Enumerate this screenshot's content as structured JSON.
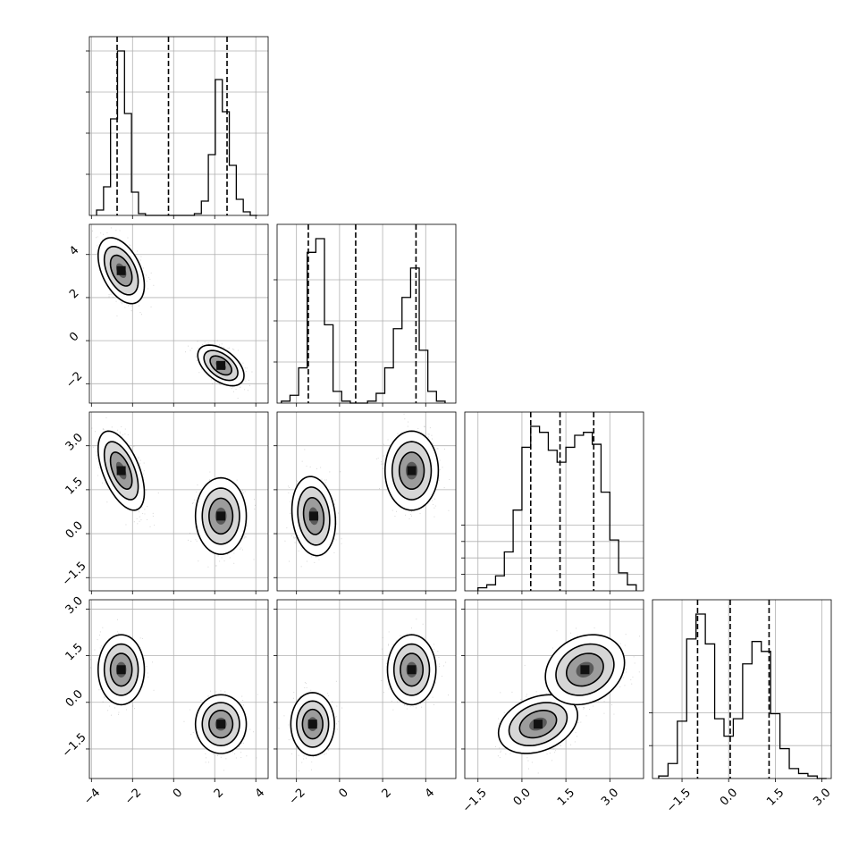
{
  "chart_data": {
    "type": "corner",
    "grid": true,
    "panels": [
      {
        "id": "hist-0",
        "type": "histogram",
        "variable_index": 0,
        "xlim": [
          -4.1,
          4.6
        ],
        "x_ticks": [
          -4,
          -2,
          0,
          2,
          4
        ],
        "x_tick_labels": [
          "−4",
          "−2",
          "0",
          "2",
          "4"
        ],
        "show_x_tick_labels": false,
        "y_ticks": [
          0.25,
          0.5,
          0.75,
          1.0
        ],
        "bins": [
          -3.75,
          -3.41,
          -3.07,
          -2.73,
          -2.39,
          -2.05,
          -1.71,
          -1.37,
          -1.03,
          -0.69,
          -0.35,
          -0.01,
          0.33,
          0.67,
          1.01,
          1.35,
          1.69,
          2.03,
          2.37,
          2.71,
          3.05,
          3.39,
          3.73,
          4.07
        ],
        "values": [
          0.03,
          0.16,
          0.54,
          0.92,
          0.57,
          0.13,
          0.01,
          0,
          0,
          0,
          0,
          0,
          0,
          0,
          0.01,
          0.08,
          0.34,
          0.76,
          0.58,
          0.28,
          0.09,
          0.02,
          0
        ],
        "quantile_lines": [
          -2.75,
          -0.25,
          2.6
        ]
      },
      {
        "id": "hist-1",
        "type": "histogram",
        "variable_index": 1,
        "xlim": [
          -2.9,
          5.4
        ],
        "x_ticks": [
          -2,
          0,
          2,
          4
        ],
        "x_tick_labels": [
          "−2",
          "0",
          "2",
          "4"
        ],
        "show_x_tick_labels": false,
        "y_ticks": [
          0.25,
          0.5,
          0.75
        ],
        "bins": [
          -2.7,
          -2.3,
          -1.9,
          -1.5,
          -1.1,
          -0.7,
          -0.3,
          0.1,
          0.5,
          0.9,
          1.3,
          1.7,
          2.1,
          2.5,
          2.9,
          3.3,
          3.7,
          4.1,
          4.5,
          4.9
        ],
        "values": [
          0.01,
          0.04,
          0.18,
          0.77,
          0.84,
          0.4,
          0.06,
          0.01,
          0,
          0,
          0.01,
          0.05,
          0.18,
          0.38,
          0.54,
          0.69,
          0.27,
          0.06,
          0.01
        ],
        "quantile_lines": [
          -1.45,
          0.75,
          3.55
        ]
      },
      {
        "id": "hist-2",
        "type": "histogram",
        "variable_index": 2,
        "xlim": [
          -1.95,
          4.15
        ],
        "x_ticks": [
          -1.5,
          0.0,
          1.5,
          3.0
        ],
        "x_tick_labels": [
          "−1.5",
          "0.0",
          "1.5",
          "3.0"
        ],
        "show_x_tick_labels": false,
        "y_ticks": [
          0.1,
          0.2,
          0.3,
          0.4
        ],
        "bins": [
          -1.5,
          -1.2,
          -0.9,
          -0.6,
          -0.3,
          0.0,
          0.3,
          0.6,
          0.9,
          1.2,
          1.5,
          1.8,
          2.1,
          2.4,
          2.7,
          3.0,
          3.3,
          3.6,
          3.9
        ],
        "values": [
          0.01,
          0.02,
          0.05,
          0.13,
          0.27,
          0.48,
          0.55,
          0.53,
          0.47,
          0.43,
          0.48,
          0.52,
          0.53,
          0.49,
          0.33,
          0.17,
          0.06,
          0.02
        ],
        "quantile_lines": [
          0.3,
          1.3,
          2.45
        ]
      },
      {
        "id": "hist-3",
        "type": "histogram",
        "variable_index": 3,
        "xlim": [
          -2.45,
          3.3
        ],
        "x_ticks": [
          -1.5,
          0.0,
          1.5,
          3.0
        ],
        "x_tick_labels": [
          "−1.5",
          "0.0",
          "1.5",
          "3.0"
        ],
        "show_x_tick_labels": true,
        "y_ticks": [
          0.2,
          0.4
        ],
        "bins": [
          -2.25,
          -1.95,
          -1.65,
          -1.35,
          -1.05,
          -0.75,
          -0.45,
          -0.15,
          0.15,
          0.45,
          0.75,
          1.05,
          1.35,
          1.65,
          1.95,
          2.25,
          2.55,
          2.85,
          3.15
        ],
        "values": [
          0.01,
          0.06,
          0.23,
          0.56,
          0.66,
          0.54,
          0.24,
          0.17,
          0.24,
          0.46,
          0.55,
          0.51,
          0.26,
          0.12,
          0.04,
          0.02,
          0.01,
          0
        ],
        "quantile_lines": [
          -1.0,
          0.05,
          1.3
        ]
      },
      {
        "id": "scatter-1-0",
        "type": "density-2d",
        "x_variable": 0,
        "y_variable": 1,
        "xlim": [
          -4.1,
          4.6
        ],
        "ylim": [
          -2.9,
          5.4
        ],
        "x_ticks": [
          -4,
          -2,
          0,
          2,
          4
        ],
        "x_tick_labels": [
          "−4",
          "−2",
          "0",
          "2",
          "4"
        ],
        "y_ticks": [
          -2,
          0,
          2,
          4
        ],
        "y_tick_labels": [
          "−2",
          "0",
          "2",
          "4"
        ],
        "show_x_tick_labels": false,
        "show_y_tick_labels": true,
        "clusters": [
          {
            "center": [
              -2.55,
              3.25
            ],
            "sigma": [
              0.5,
              0.68
            ],
            "rho": -0.45
          },
          {
            "center": [
              2.3,
              -1.15
            ],
            "sigma": [
              0.5,
              0.42
            ],
            "rho": -0.5
          }
        ]
      },
      {
        "id": "scatter-2-0",
        "type": "density-2d",
        "x_variable": 0,
        "y_variable": 2,
        "xlim": [
          -4.1,
          4.6
        ],
        "ylim": [
          -1.95,
          4.15
        ],
        "x_ticks": [
          -4,
          -2,
          0,
          2,
          4
        ],
        "x_tick_labels": [
          "−4",
          "−2",
          "0",
          "2",
          "4"
        ],
        "y_ticks": [
          -1.5,
          0.0,
          1.5,
          3.0
        ],
        "y_tick_labels": [
          "−1.5",
          "0.0",
          "1.5",
          "3.0"
        ],
        "show_x_tick_labels": false,
        "show_y_tick_labels": true,
        "clusters": [
          {
            "center": [
              -2.55,
              2.15
            ],
            "sigma": [
              0.5,
              0.6
            ],
            "rho": -0.55
          },
          {
            "center": [
              2.3,
              0.6
            ],
            "sigma": [
              0.55,
              0.58
            ],
            "rho": 0.0
          }
        ]
      },
      {
        "id": "scatter-2-1",
        "type": "density-2d",
        "x_variable": 1,
        "y_variable": 2,
        "xlim": [
          -2.9,
          5.4
        ],
        "ylim": [
          -1.95,
          4.15
        ],
        "x_ticks": [
          -2,
          0,
          2,
          4
        ],
        "x_tick_labels": [
          "−2",
          "0",
          "2",
          "4"
        ],
        "y_ticks": [
          -1.5,
          0.0,
          1.5,
          3.0
        ],
        "y_tick_labels": [
          "−1.5",
          "0.0",
          "1.5",
          "3.0"
        ],
        "show_x_tick_labels": false,
        "show_y_tick_labels": false,
        "clusters": [
          {
            "center": [
              -1.2,
              0.6
            ],
            "sigma": [
              0.45,
              0.6
            ],
            "rho": -0.15
          },
          {
            "center": [
              3.35,
              2.15
            ],
            "sigma": [
              0.55,
              0.6
            ],
            "rho": 0.0
          }
        ]
      },
      {
        "id": "scatter-3-0",
        "type": "density-2d",
        "x_variable": 0,
        "y_variable": 3,
        "xlim": [
          -4.1,
          4.6
        ],
        "ylim": [
          -2.45,
          3.3
        ],
        "x_ticks": [
          -4,
          -2,
          0,
          2,
          4
        ],
        "x_tick_labels": [
          "−4",
          "−2",
          "0",
          "2",
          "4"
        ],
        "y_ticks": [
          -1.5,
          0.0,
          1.5,
          3.0
        ],
        "y_tick_labels": [
          "−1.5",
          "0.0",
          "1.5",
          "3.0"
        ],
        "show_x_tick_labels": true,
        "show_y_tick_labels": true,
        "clusters": [
          {
            "center": [
              -2.55,
              1.05
            ],
            "sigma": [
              0.5,
              0.5
            ],
            "rho": 0.0
          },
          {
            "center": [
              2.3,
              -0.7
            ],
            "sigma": [
              0.55,
              0.42
            ],
            "rho": 0.0
          }
        ]
      },
      {
        "id": "scatter-3-1",
        "type": "density-2d",
        "x_variable": 1,
        "y_variable": 3,
        "xlim": [
          -2.9,
          5.4
        ],
        "ylim": [
          -2.45,
          3.3
        ],
        "x_ticks": [
          -2,
          0,
          2,
          4
        ],
        "x_tick_labels": [
          "−2",
          "0",
          "2",
          "4"
        ],
        "y_ticks": [
          -1.5,
          0.0,
          1.5,
          3.0
        ],
        "y_tick_labels": [
          "−1.5",
          "0.0",
          "1.5",
          "3.0"
        ],
        "show_x_tick_labels": true,
        "show_y_tick_labels": false,
        "clusters": [
          {
            "center": [
              -1.25,
              -0.7
            ],
            "sigma": [
              0.45,
              0.45
            ],
            "rho": 0.0
          },
          {
            "center": [
              3.35,
              1.05
            ],
            "sigma": [
              0.5,
              0.5
            ],
            "rho": 0.0
          }
        ]
      },
      {
        "id": "scatter-3-2",
        "type": "density-2d",
        "x_variable": 2,
        "y_variable": 3,
        "xlim": [
          -1.95,
          4.15
        ],
        "ylim": [
          -2.45,
          3.3
        ],
        "x_ticks": [
          -1.5,
          0.0,
          1.5,
          3.0
        ],
        "x_tick_labels": [
          "−1.5",
          "0.0",
          "1.5",
          "3.0"
        ],
        "y_ticks": [
          -1.5,
          0.0,
          1.5,
          3.0
        ],
        "y_tick_labels": [
          "−1.5",
          "0.0",
          "1.5",
          "3.0"
        ],
        "show_x_tick_labels": true,
        "show_y_tick_labels": false,
        "clusters": [
          {
            "center": [
              0.55,
              -0.7
            ],
            "sigma": [
              0.6,
              0.42
            ],
            "rho": 0.3
          },
          {
            "center": [
              2.15,
              1.05
            ],
            "sigma": [
              0.6,
              0.5
            ],
            "rho": 0.2
          }
        ]
      }
    ]
  }
}
